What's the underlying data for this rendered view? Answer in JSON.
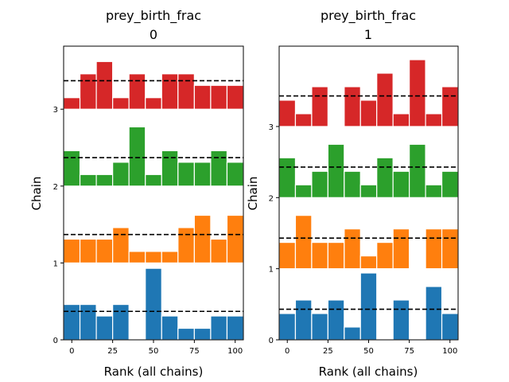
{
  "chart_data": [
    {
      "type": "bar",
      "title_line1": "prey_birth_frac",
      "title_line2": "0",
      "xlabel": "Rank (all chains)",
      "ylabel": "Chain",
      "xlim": [
        -5,
        105
      ],
      "ylim": [
        0,
        3.82
      ],
      "xticks": [
        0,
        25,
        50,
        75,
        100
      ],
      "yticks": [
        0,
        1,
        2,
        3
      ],
      "bin_width": 10,
      "grid": false,
      "reference_line": "dashed",
      "series": [
        {
          "chain": 0,
          "color": "#1f77b4",
          "reference": 0.37,
          "values": [
            0.46,
            0.46,
            0.31,
            0.46,
            0.0,
            0.93,
            0.31,
            0.15,
            0.15,
            0.31,
            0.31
          ]
        },
        {
          "chain": 1,
          "color": "#ff7f0e",
          "reference": 1.37,
          "values": [
            1.31,
            1.31,
            1.31,
            1.46,
            1.15,
            1.15,
            1.15,
            1.46,
            1.62,
            1.31,
            1.62
          ]
        },
        {
          "chain": 2,
          "color": "#2ca02c",
          "reference": 2.37,
          "values": [
            2.46,
            2.15,
            2.15,
            2.31,
            2.77,
            2.15,
            2.46,
            2.31,
            2.31,
            2.46,
            2.31
          ]
        },
        {
          "chain": 3,
          "color": "#d62728",
          "reference": 3.37,
          "values": [
            3.15,
            3.46,
            3.62,
            3.15,
            3.46,
            3.15,
            3.46,
            3.46,
            3.31,
            3.31,
            3.31
          ]
        }
      ]
    },
    {
      "type": "bar",
      "title_line1": "prey_birth_frac",
      "title_line2": "1",
      "xlabel": "Rank (all chains)",
      "ylabel": "Chain",
      "xlim": [
        -5,
        105
      ],
      "ylim": [
        0,
        4.13
      ],
      "xticks": [
        0,
        25,
        50,
        75,
        100
      ],
      "yticks": [
        0,
        1,
        2,
        3
      ],
      "bin_width": 10,
      "grid": false,
      "reference_line": "dashed",
      "series": [
        {
          "chain": 0,
          "color": "#1f77b4",
          "reference": 0.43,
          "values": [
            0.37,
            0.56,
            0.37,
            0.56,
            0.18,
            0.94,
            0.0,
            0.56,
            0.0,
            0.75,
            0.37
          ]
        },
        {
          "chain": 1,
          "color": "#ff7f0e",
          "reference": 1.43,
          "values": [
            1.37,
            1.75,
            1.37,
            1.37,
            1.56,
            1.18,
            1.37,
            1.56,
            1.0,
            1.56,
            1.56
          ]
        },
        {
          "chain": 2,
          "color": "#2ca02c",
          "reference": 2.43,
          "values": [
            2.56,
            2.18,
            2.37,
            2.75,
            2.37,
            2.18,
            2.56,
            2.37,
            2.75,
            2.18,
            2.37
          ]
        },
        {
          "chain": 3,
          "color": "#d62728",
          "reference": 3.43,
          "values": [
            3.37,
            3.18,
            3.56,
            3.0,
            3.56,
            3.37,
            3.75,
            3.18,
            3.94,
            3.18,
            3.56
          ]
        }
      ]
    }
  ]
}
